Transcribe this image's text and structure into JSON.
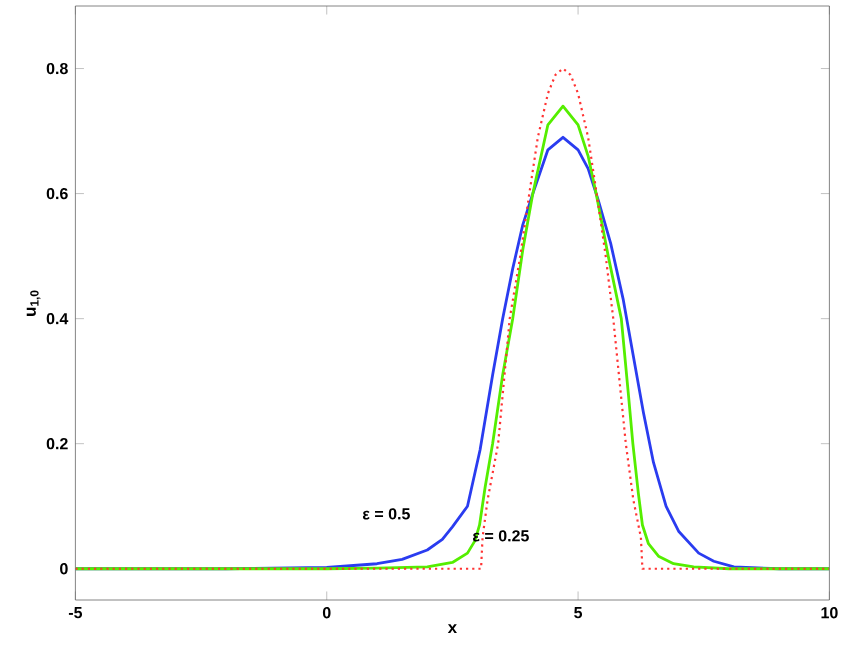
{
  "chart_data": {
    "type": "line",
    "xlabel": "x",
    "ylabel": "u$_{1,0}$",
    "xlim": [
      -5,
      10
    ],
    "ylim": [
      -0.05,
      0.9
    ],
    "xticks": [
      -5,
      0,
      5,
      10
    ],
    "yticks": [
      0,
      0.2,
      0.4,
      0.6,
      0.8
    ],
    "marker": "none",
    "grid": false,
    "series": [
      {
        "color": "#2a3cf0",
        "line_style": "solid",
        "x": [
          -5,
          -2,
          0,
          1,
          1.5,
          2,
          2.3,
          2.5,
          2.8,
          3.05,
          3.3,
          3.5,
          3.7,
          3.9,
          4.1,
          4.4,
          4.7,
          5.0,
          5.2,
          5.4,
          5.65,
          5.9,
          6.1,
          6.3,
          6.5,
          6.75,
          7.0,
          7.4,
          7.7,
          8.1,
          9,
          10
        ],
        "values": [
          0,
          0,
          0.002,
          0.008,
          0.015,
          0.03,
          0.047,
          0.067,
          0.1,
          0.19,
          0.31,
          0.4,
          0.48,
          0.55,
          0.6,
          0.67,
          0.69,
          0.67,
          0.64,
          0.59,
          0.52,
          0.43,
          0.34,
          0.25,
          0.17,
          0.1,
          0.06,
          0.025,
          0.012,
          0.003,
          0,
          0
        ]
      },
      {
        "color": "#55ee00",
        "line_style": "solid",
        "x": [
          -5,
          0,
          1,
          2,
          2.5,
          2.8,
          2.95,
          3.04,
          3.15,
          3.3,
          3.5,
          3.7,
          3.9,
          4.1,
          4.4,
          4.7,
          5.0,
          5.2,
          5.36,
          5.6,
          5.86,
          6.0,
          6.09,
          6.2,
          6.28,
          6.4,
          6.6,
          6.9,
          7.3,
          8,
          10
        ],
        "values": [
          0,
          0,
          0.001,
          0.003,
          0.01,
          0.025,
          0.045,
          0.07,
          0.13,
          0.2,
          0.31,
          0.4,
          0.51,
          0.6,
          0.71,
          0.74,
          0.71,
          0.66,
          0.6,
          0.5,
          0.4,
          0.28,
          0.2,
          0.12,
          0.07,
          0.04,
          0.02,
          0.008,
          0.003,
          0,
          0
        ]
      },
      {
        "color": "#ff3333",
        "line_style": "dotted",
        "x": [
          -5,
          3.07,
          3.1,
          3.2,
          3.41,
          3.64,
          3.85,
          4.03,
          4.2,
          4.4,
          4.55,
          4.7,
          4.85,
          5.0,
          5.2,
          5.37,
          5.55,
          5.7,
          5.95,
          6.1,
          6.25,
          6.28,
          10
        ],
        "values": [
          0,
          0,
          0.05,
          0.11,
          0.2,
          0.4,
          0.5,
          0.6,
          0.69,
          0.76,
          0.79,
          0.8,
          0.79,
          0.76,
          0.69,
          0.6,
          0.5,
          0.4,
          0.2,
          0.11,
          0.05,
          0,
          0
        ]
      }
    ],
    "annotations": [
      "ε = 0.5",
      "ε = 0.25"
    ]
  }
}
